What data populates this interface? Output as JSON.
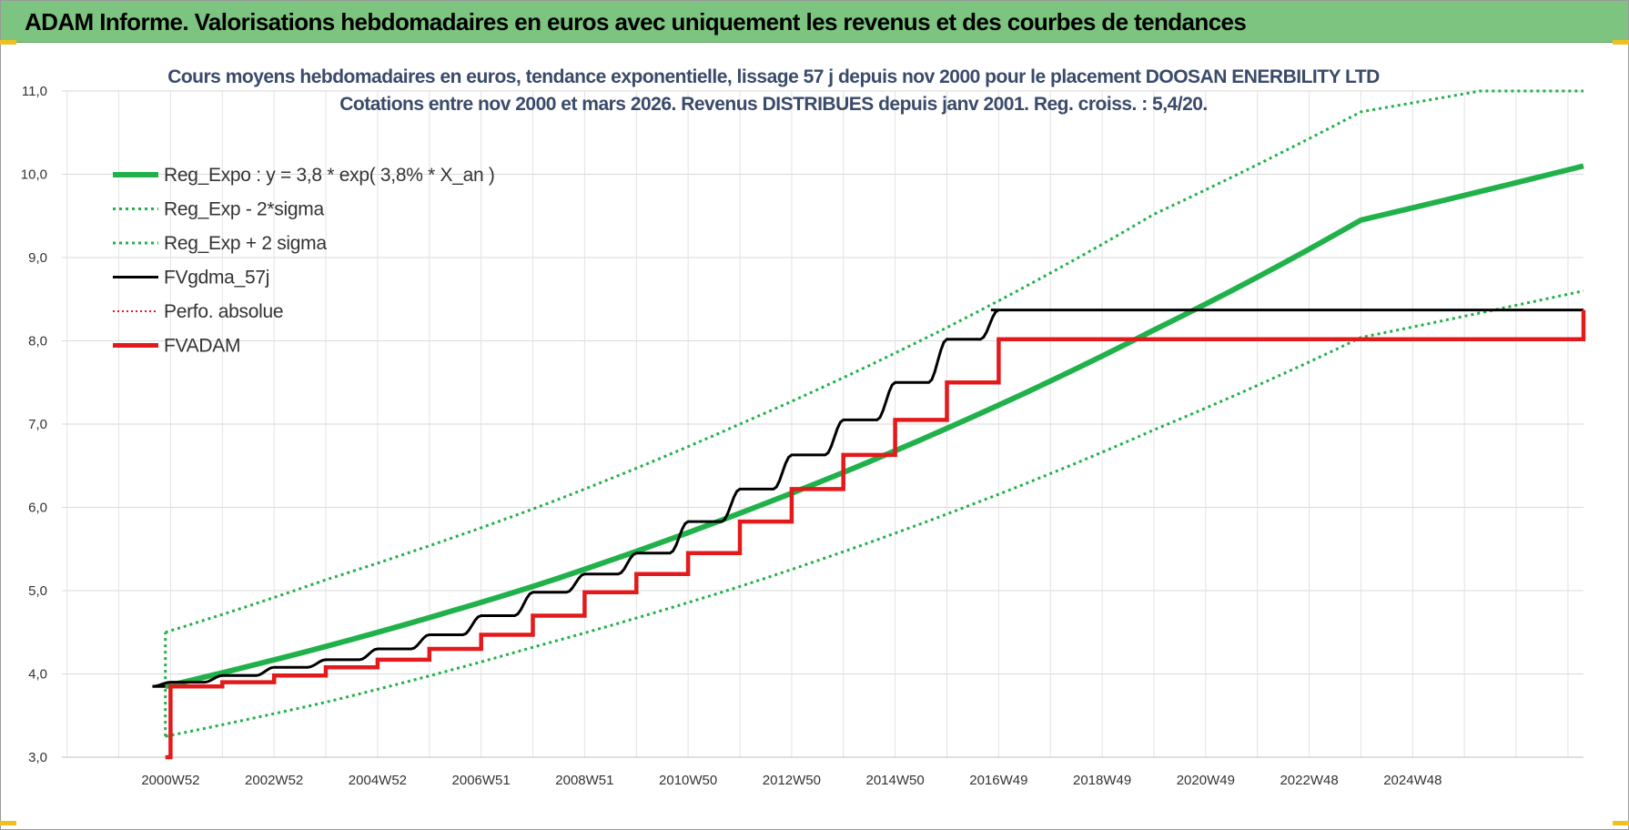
{
  "header": {
    "title": "ADAM Informe. Valorisations hebdomadaires en euros avec uniquement les revenus et des courbes de tendances"
  },
  "colors": {
    "banner": "#7cc47f",
    "reg_green": "#21b14a",
    "fvadam_red": "#e31a1c",
    "fvgdma_black": "#000000"
  },
  "chart_data": {
    "type": "line",
    "title_line1": "Cours moyens hebdomadaires en euros, tendance exponentielle, lissage 57 j depuis nov 2000 pour le placement DOOSAN ENERBILITY  LTD",
    "title_line2": "Cotations entre nov 2000 et mars 2026. Revenus DISTRIBUES depuis janv 2001. Reg. croiss. : 5,4/20.",
    "xlabel": "",
    "ylabel": "",
    "xlim": [
      1998.9,
      2028.3
    ],
    "ylim": [
      3.0,
      11.0
    ],
    "y_ticks": [
      "3,0",
      "4,0",
      "5,0",
      "6,0",
      "7,0",
      "8,0",
      "9,0",
      "10,0",
      "11,0"
    ],
    "x_tick_labels": [
      "2000W52",
      "2002W52",
      "2004W52",
      "2006W51",
      "2008W51",
      "2010W50",
      "2012W50",
      "2014W50",
      "2016W49",
      "2018W49",
      "2020W49",
      "2022W48",
      "2024W48"
    ],
    "x_tick_values": [
      2001.0,
      2003.0,
      2005.0,
      2007.0,
      2009.0,
      2011.0,
      2013.0,
      2015.0,
      2017.0,
      2019.0,
      2021.0,
      2023.0,
      2025.0
    ],
    "grid": true,
    "legend_position": "top-left",
    "series": [
      {
        "name": "Reg_Expo : y = 3,8 * exp( 3,8% *  X_an )",
        "style": "solid-thick",
        "color": "#21b14a",
        "x": [
          2000.9,
          2004,
          2008,
          2012,
          2016,
          2020,
          2024,
          2028.3
        ],
        "y": [
          3.85,
          4.33,
          5.05,
          5.93,
          6.95,
          8.13,
          9.45,
          10.1
        ]
      },
      {
        "name": "Reg_Exp - 2*sigma",
        "style": "dotted",
        "color": "#21b14a",
        "x": [
          2000.9,
          2004,
          2008,
          2012,
          2016,
          2020,
          2024,
          2028.3
        ],
        "y": [
          3.25,
          3.66,
          4.32,
          5.05,
          5.92,
          6.93,
          8.04,
          8.6
        ]
      },
      {
        "name": "Reg_Exp + 2 sigma",
        "style": "dotted",
        "color": "#21b14a",
        "x": [
          2000.9,
          2004,
          2008,
          2012,
          2016,
          2020,
          2024,
          2026.3,
          2028.3
        ],
        "y": [
          4.5,
          5.13,
          5.98,
          7.0,
          8.16,
          9.52,
          10.75,
          11.0,
          11.0
        ]
      },
      {
        "name": "FVgdma_57j",
        "style": "solid",
        "color": "#000000",
        "x": [
          2000.9,
          2001,
          2002,
          2003,
          2004,
          2005,
          2006,
          2007,
          2008,
          2009,
          2010,
          2011,
          2012,
          2013,
          2014,
          2015,
          2016,
          2017,
          2017.2,
          2028.3
        ],
        "y": [
          3.85,
          3.9,
          3.98,
          4.08,
          4.17,
          4.3,
          4.47,
          4.7,
          4.98,
          5.2,
          5.45,
          5.83,
          6.22,
          6.63,
          7.05,
          7.5,
          8.02,
          8.37,
          8.37,
          8.37
        ]
      },
      {
        "name": "Perfo. absolue",
        "style": "dotted-thin",
        "color": "#e31a1c",
        "x": [],
        "y": []
      },
      {
        "name": "FVADAM",
        "style": "step-thick",
        "color": "#e31a1c",
        "x": [
          2000.9,
          2001,
          2002,
          2003,
          2004,
          2005,
          2006,
          2007,
          2008,
          2009,
          2010,
          2011,
          2012,
          2013,
          2014,
          2015,
          2016,
          2017,
          2028.3
        ],
        "y": [
          3.0,
          3.85,
          3.9,
          3.98,
          4.08,
          4.17,
          4.3,
          4.47,
          4.7,
          4.98,
          5.2,
          5.45,
          5.83,
          6.22,
          6.63,
          7.05,
          7.5,
          8.02,
          8.37
        ]
      }
    ]
  }
}
